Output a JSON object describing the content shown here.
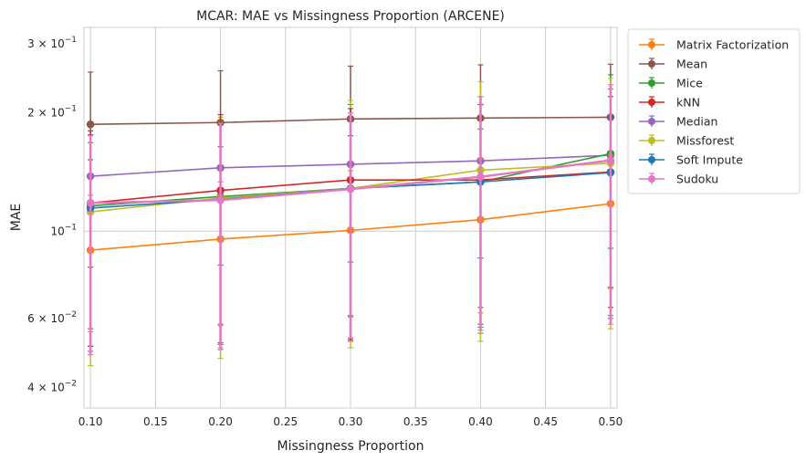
{
  "chart_data": {
    "type": "line",
    "title": "MCAR: MAE vs Missingness Proportion (ARCENE)",
    "xlabel": "Missingness Proportion",
    "ylabel": "MAE",
    "x": [
      0.1,
      0.2,
      0.3,
      0.4,
      0.5
    ],
    "xlim": [
      0.095,
      0.505
    ],
    "ylim": [
      0.0355,
      0.33
    ],
    "yscale": "log",
    "grid": true,
    "legend_position": "outside-right",
    "x_ticks": [
      {
        "value": 0.1,
        "label": "0.10"
      },
      {
        "value": 0.15,
        "label": "0.15"
      },
      {
        "value": 0.2,
        "label": "0.20"
      },
      {
        "value": 0.25,
        "label": "0.25"
      },
      {
        "value": 0.3,
        "label": "0.30"
      },
      {
        "value": 0.35,
        "label": "0.35"
      },
      {
        "value": 0.4,
        "label": "0.40"
      },
      {
        "value": 0.45,
        "label": "0.45"
      },
      {
        "value": 0.5,
        "label": "0.50"
      }
    ],
    "y_ticks": [
      {
        "value": 0.04,
        "mantissa": "4",
        "exponent": "−2"
      },
      {
        "value": 0.06,
        "mantissa": "6",
        "exponent": "−2"
      },
      {
        "value": 0.1,
        "mantissa": "",
        "exponent": "−1"
      },
      {
        "value": 0.2,
        "mantissa": "2",
        "exponent": "−1"
      },
      {
        "value": 0.3,
        "mantissa": "3",
        "exponent": "−1"
      }
    ],
    "series": [
      {
        "name": "Matrix Factorization",
        "color": "#ff7f0e",
        "values": [
          0.0895,
          0.0955,
          0.1005,
          0.107,
          0.1175
        ],
        "err_low": [
          0.0555,
          0.0575,
          0.0605,
          0.062,
          0.0715
        ],
        "err_high": [
          0.1235,
          0.1335,
          0.1425,
          0.152,
          0.156
        ]
      },
      {
        "name": "Mean",
        "color": "#8c564b",
        "values": [
          0.187,
          0.189,
          0.193,
          0.194,
          0.195
        ],
        "err_low": [
          0.0565,
          0.058,
          0.061,
          0.064,
          0.072
        ],
        "err_high": [
          0.254,
          0.256,
          0.263,
          0.265,
          0.266
        ]
      },
      {
        "name": "Mice",
        "color": "#2ca02c",
        "values": [
          0.116,
          0.1225,
          0.1285,
          0.1335,
          0.1575
        ],
        "err_low": [
          0.051,
          0.0515,
          0.0535,
          0.057,
          0.061
        ],
        "err_high": [
          0.168,
          0.19,
          0.21,
          0.22,
          0.25
        ]
      },
      {
        "name": "kNN",
        "color": "#d62728",
        "values": [
          0.118,
          0.127,
          0.135,
          0.135,
          0.1415
        ],
        "err_low": [
          0.051,
          0.052,
          0.053,
          0.058,
          0.064
        ],
        "err_high": [
          0.18,
          0.198,
          0.205,
          0.21,
          0.22
        ]
      },
      {
        "name": "Median",
        "color": "#9467bd",
        "values": [
          0.138,
          0.145,
          0.148,
          0.151,
          0.156
        ],
        "err_low": [
          0.0495,
          0.05,
          0.0525,
          0.055,
          0.06
        ],
        "err_high": [
          0.176,
          0.19,
          0.2,
          0.21,
          0.23
        ]
      },
      {
        "name": "Missforest",
        "color": "#bcbd22",
        "values": [
          0.112,
          0.1215,
          0.1285,
          0.143,
          0.149
        ],
        "err_low": [
          0.0455,
          0.0475,
          0.0505,
          0.0525,
          0.0565
        ],
        "err_high": [
          0.175,
          0.195,
          0.215,
          0.24,
          0.245
        ]
      },
      {
        "name": "Soft Impute",
        "color": "#1f77b4",
        "values": [
          0.1145,
          0.1205,
          0.1285,
          0.1335,
          0.141
        ],
        "err_low": [
          0.081,
          0.082,
          0.0835,
          0.0855,
          0.0905
        ],
        "err_high": [
          0.152,
          0.164,
          0.175,
          0.182,
          0.195
        ]
      },
      {
        "name": "Sudoku",
        "color": "#e377c2",
        "values": [
          0.118,
          0.12,
          0.128,
          0.1375,
          0.1515
        ],
        "err_low": [
          0.0485,
          0.0505,
          0.0535,
          0.056,
          0.058
        ],
        "err_high": [
          0.175,
          0.188,
          0.2,
          0.22,
          0.236
        ]
      }
    ]
  }
}
